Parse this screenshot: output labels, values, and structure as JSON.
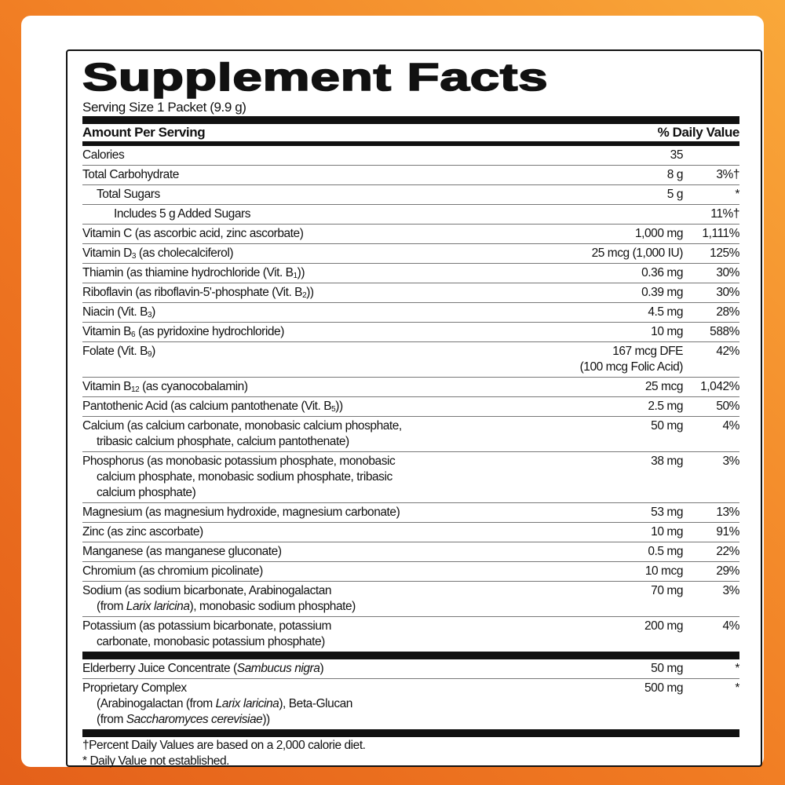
{
  "title": "Supplement Facts",
  "serving_size": "Serving Size 1 Packet (9.9 g)",
  "header": {
    "amount_per_serving": "Amount Per Serving",
    "daily_value": "% Daily Value"
  },
  "rows": [
    {
      "indent": 0,
      "lines": [
        [
          {
            "t": "Calories"
          }
        ]
      ],
      "amount": [
        "35"
      ],
      "dv": ""
    },
    {
      "indent": 0,
      "lines": [
        [
          {
            "t": "Total Carbohydrate"
          }
        ]
      ],
      "amount": [
        "8 g"
      ],
      "dv": "3%†"
    },
    {
      "indent": 1,
      "lines": [
        [
          {
            "t": "Total Sugars"
          }
        ]
      ],
      "amount": [
        "5 g"
      ],
      "dv": "*"
    },
    {
      "indent": 2,
      "lines": [
        [
          {
            "t": "Includes 5 g Added Sugars"
          }
        ]
      ],
      "amount": [
        ""
      ],
      "dv": "11%†"
    },
    {
      "indent": 0,
      "lines": [
        [
          {
            "t": "Vitamin C (as ascorbic acid, zinc ascorbate)"
          }
        ]
      ],
      "amount": [
        "1,000 mg"
      ],
      "dv": "1,111%"
    },
    {
      "indent": 0,
      "lines": [
        [
          {
            "t": "Vitamin D"
          },
          {
            "t": "3",
            "s": "sub"
          },
          {
            "t": " (as cholecalciferol)"
          }
        ]
      ],
      "amount": [
        "25 mcg (1,000 IU)"
      ],
      "dv": "125%"
    },
    {
      "indent": 0,
      "lines": [
        [
          {
            "t": "Thiamin (as thiamine hydrochloride (Vit. B"
          },
          {
            "t": "1",
            "s": "sub"
          },
          {
            "t": "))"
          }
        ]
      ],
      "amount": [
        "0.36 mg"
      ],
      "dv": "30%"
    },
    {
      "indent": 0,
      "lines": [
        [
          {
            "t": "Riboflavin (as riboflavin-5'-phosphate (Vit. B"
          },
          {
            "t": "2",
            "s": "sub"
          },
          {
            "t": "))"
          }
        ]
      ],
      "amount": [
        "0.39 mg"
      ],
      "dv": "30%"
    },
    {
      "indent": 0,
      "lines": [
        [
          {
            "t": "Niacin (Vit. B"
          },
          {
            "t": "3",
            "s": "sub"
          },
          {
            "t": ")"
          }
        ]
      ],
      "amount": [
        "4.5 mg"
      ],
      "dv": "28%"
    },
    {
      "indent": 0,
      "lines": [
        [
          {
            "t": "Vitamin B"
          },
          {
            "t": "6",
            "s": "sub"
          },
          {
            "t": " (as pyridoxine hydrochloride)"
          }
        ]
      ],
      "amount": [
        "10 mg"
      ],
      "dv": "588%"
    },
    {
      "indent": 0,
      "lines": [
        [
          {
            "t": "Folate (Vit. B"
          },
          {
            "t": "9",
            "s": "sub"
          },
          {
            "t": ")"
          }
        ]
      ],
      "amount": [
        "167 mcg DFE",
        "(100 mcg Folic Acid)"
      ],
      "dv": "42%"
    },
    {
      "indent": 0,
      "lines": [
        [
          {
            "t": "Vitamin B"
          },
          {
            "t": "12",
            "s": "sub"
          },
          {
            "t": " (as cyanocobalamin)"
          }
        ]
      ],
      "amount": [
        "25 mcg"
      ],
      "dv": "1,042%"
    },
    {
      "indent": 0,
      "lines": [
        [
          {
            "t": "Pantothenic Acid (as calcium pantothenate (Vit. B"
          },
          {
            "t": "5",
            "s": "sub"
          },
          {
            "t": "))"
          }
        ]
      ],
      "amount": [
        "2.5 mg"
      ],
      "dv": "50%"
    },
    {
      "indent": 0,
      "lines": [
        [
          {
            "t": "Calcium (as calcium carbonate, monobasic calcium phosphate,"
          }
        ],
        [
          {
            "t": "tribasic calcium phosphate, calcium pantothenate)"
          }
        ]
      ],
      "amount": [
        "50 mg"
      ],
      "dv": "4%"
    },
    {
      "indent": 0,
      "lines": [
        [
          {
            "t": "Phosphorus (as monobasic potassium phosphate, monobasic"
          }
        ],
        [
          {
            "t": "calcium phosphate, monobasic sodium phosphate, tribasic"
          }
        ],
        [
          {
            "t": "calcium phosphate)"
          }
        ]
      ],
      "amount": [
        "38 mg"
      ],
      "dv": "3%"
    },
    {
      "indent": 0,
      "lines": [
        [
          {
            "t": "Magnesium (as magnesium hydroxide, magnesium carbonate)"
          }
        ]
      ],
      "amount": [
        "53 mg"
      ],
      "dv": "13%"
    },
    {
      "indent": 0,
      "lines": [
        [
          {
            "t": "Zinc (as zinc ascorbate)"
          }
        ]
      ],
      "amount": [
        "10 mg"
      ],
      "dv": "91%"
    },
    {
      "indent": 0,
      "lines": [
        [
          {
            "t": "Manganese (as manganese gluconate)"
          }
        ]
      ],
      "amount": [
        "0.5 mg"
      ],
      "dv": "22%"
    },
    {
      "indent": 0,
      "lines": [
        [
          {
            "t": "Chromium (as chromium picolinate)"
          }
        ]
      ],
      "amount": [
        "10 mcg"
      ],
      "dv": "29%"
    },
    {
      "indent": 0,
      "lines": [
        [
          {
            "t": "Sodium (as sodium bicarbonate, Arabinogalactan"
          }
        ],
        [
          {
            "t": "(from "
          },
          {
            "t": "Larix laricina",
            "s": "i"
          },
          {
            "t": "), monobasic sodium phosphate)"
          }
        ]
      ],
      "amount": [
        "70 mg"
      ],
      "dv": "3%"
    },
    {
      "indent": 0,
      "lines": [
        [
          {
            "t": "Potassium (as potassium bicarbonate, potassium"
          }
        ],
        [
          {
            "t": "carbonate, monobasic potassium phosphate)"
          }
        ]
      ],
      "amount": [
        "200 mg"
      ],
      "dv": "4%",
      "last": true
    }
  ],
  "other_rows": [
    {
      "indent": 0,
      "lines": [
        [
          {
            "t": "Elderberry Juice Concentrate ("
          },
          {
            "t": "Sambucus nigra",
            "s": "i"
          },
          {
            "t": ")"
          }
        ]
      ],
      "amount": [
        "50 mg"
      ],
      "dv": "*"
    },
    {
      "indent": 0,
      "lines": [
        [
          {
            "t": "Proprietary Complex"
          }
        ],
        [
          {
            "t": "(Arabinogalactan (from "
          },
          {
            "t": "Larix laricina",
            "s": "i"
          },
          {
            "t": "), Beta-Glucan"
          }
        ],
        [
          {
            "t": "(from "
          },
          {
            "t": "Saccharomyces cerevisiae",
            "s": "i"
          },
          {
            "t": "))"
          }
        ]
      ],
      "amount": [
        "500 mg"
      ],
      "dv": "*",
      "last": true
    }
  ],
  "footnotes": [
    "†Percent Daily Values are based on a 2,000 calorie diet.",
    "* Daily Value not established."
  ]
}
